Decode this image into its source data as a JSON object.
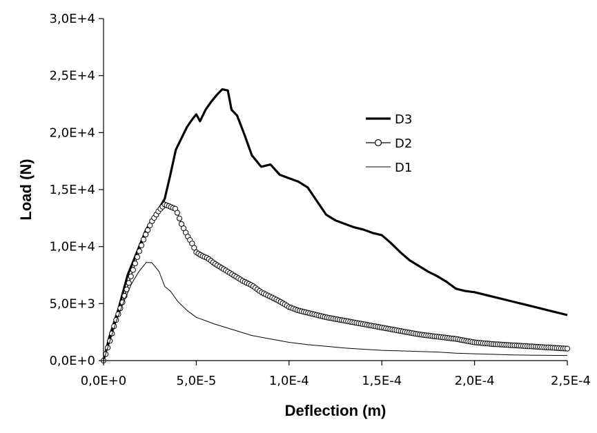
{
  "chart_data": {
    "type": "line",
    "xlabel": "Deflection (m)",
    "ylabel": "Load (N)",
    "xlim": [
      0,
      0.00025
    ],
    "ylim": [
      0,
      30000
    ],
    "x_ticks": [
      {
        "value": 0,
        "label": "0,0E+0"
      },
      {
        "value": 5e-05,
        "label": "5,0E-5"
      },
      {
        "value": 0.0001,
        "label": "1,0E-4"
      },
      {
        "value": 0.00015,
        "label": "1,5E-4"
      },
      {
        "value": 0.0002,
        "label": "2,0E-4"
      },
      {
        "value": 0.00025,
        "label": "2,5E-4"
      }
    ],
    "y_ticks": [
      {
        "value": 0,
        "label": "0,0E+0"
      },
      {
        "value": 5000,
        "label": "5,0E+3"
      },
      {
        "value": 10000,
        "label": "1,0E+4"
      },
      {
        "value": 15000,
        "label": "1,5E+4"
      },
      {
        "value": 20000,
        "label": "2,0E+4"
      },
      {
        "value": 25000,
        "label": "2,5E+4"
      },
      {
        "value": 30000,
        "label": "3,0E+4"
      }
    ],
    "grid": false,
    "legend_position": "center-right",
    "series": [
      {
        "name": "D3",
        "style": "thick-line",
        "color": "#000000",
        "x": [
          0,
          3e-06,
          8e-06,
          1.3e-05,
          1.8e-05,
          2.3e-05,
          2.8e-05,
          3.3e-05,
          3.6e-05,
          3.9e-05,
          4.2e-05,
          4.5e-05,
          4.8e-05,
          5e-05,
          5.2e-05,
          5.5e-05,
          5.8e-05,
          6.1e-05,
          6.4e-05,
          6.7e-05,
          6.9e-05,
          7.2e-05,
          7.6e-05,
          8e-05,
          8.5e-05,
          9e-05,
          9.5e-05,
          0.0001,
          0.000105,
          0.00011,
          0.000115,
          0.00012,
          0.000125,
          0.00013,
          0.000135,
          0.00014,
          0.000145,
          0.00015,
          0.000155,
          0.00016,
          0.000165,
          0.00017,
          0.000175,
          0.00018,
          0.000185,
          0.00019,
          0.000195,
          0.0002,
          0.000205,
          0.00021,
          0.000215,
          0.00022,
          0.000225,
          0.00023,
          0.000235,
          0.00024,
          0.000245,
          0.00025
        ],
        "y": [
          0,
          2000,
          4500,
          7500,
          9500,
          11500,
          12800,
          14200,
          16300,
          18500,
          19500,
          20500,
          21200,
          21600,
          21000,
          22000,
          22700,
          23300,
          23800,
          23700,
          22000,
          21500,
          19800,
          18000,
          17000,
          17200,
          16300,
          16000,
          15700,
          15200,
          14000,
          12800,
          12300,
          12000,
          11700,
          11500,
          11200,
          11000,
          10300,
          9500,
          8800,
          8300,
          7800,
          7400,
          6900,
          6300,
          6100,
          6000,
          5800,
          5600,
          5400,
          5200,
          5000,
          4800,
          4600,
          4400,
          4200,
          4000
        ]
      },
      {
        "name": "D2",
        "style": "line-with-circles",
        "color": "#000000",
        "x": [
          0,
          3e-06,
          6e-06,
          1e-05,
          1.4e-05,
          1.8e-05,
          2.2e-05,
          2.6e-05,
          3e-05,
          3.3e-05,
          3.6e-05,
          3.9e-05,
          4.2e-05,
          4.5e-05,
          4.8e-05,
          5e-05,
          5.3e-05,
          5.6e-05,
          6e-05,
          6.5e-05,
          7e-05,
          7.5e-05,
          8e-05,
          8.5e-05,
          9e-05,
          9.5e-05,
          0.0001,
          0.000105,
          0.00011,
          0.000115,
          0.00012,
          0.00013,
          0.00014,
          0.00015,
          0.00016,
          0.00017,
          0.00018,
          0.00019,
          0.0002,
          0.00021,
          0.00022,
          0.00023,
          0.00024,
          0.00025
        ],
        "y": [
          0,
          1500,
          3200,
          5000,
          7000,
          9000,
          10800,
          12200,
          13200,
          13700,
          13500,
          13300,
          12000,
          11000,
          10200,
          9500,
          9200,
          9000,
          8500,
          8000,
          7500,
          7000,
          6600,
          6000,
          5600,
          5200,
          4700,
          4400,
          4200,
          4000,
          3800,
          3500,
          3200,
          2900,
          2600,
          2300,
          2100,
          1900,
          1600,
          1450,
          1350,
          1250,
          1150,
          1050
        ]
      },
      {
        "name": "D1",
        "style": "thin-line",
        "color": "#000000",
        "x": [
          0,
          3e-06,
          7e-06,
          1.1e-05,
          1.5e-05,
          1.9e-05,
          2.3e-05,
          2.6e-05,
          2.8e-05,
          3e-05,
          3.3e-05,
          3.6e-05,
          4e-05,
          4.5e-05,
          5e-05,
          6e-05,
          7e-05,
          8e-05,
          9e-05,
          0.0001,
          0.00011,
          0.00012,
          0.00013,
          0.00014,
          0.00015,
          0.00016,
          0.00017,
          0.00018,
          0.00019,
          0.0002,
          0.00021,
          0.00022,
          0.00023,
          0.00024,
          0.00025
        ],
        "y": [
          0,
          1500,
          3500,
          5200,
          6700,
          7800,
          8600,
          8600,
          8200,
          7800,
          6500,
          6100,
          5200,
          4400,
          3800,
          3200,
          2700,
          2200,
          1900,
          1600,
          1400,
          1250,
          1100,
          1000,
          900,
          850,
          800,
          750,
          650,
          600,
          550,
          500,
          480,
          460,
          450
        ]
      }
    ]
  }
}
